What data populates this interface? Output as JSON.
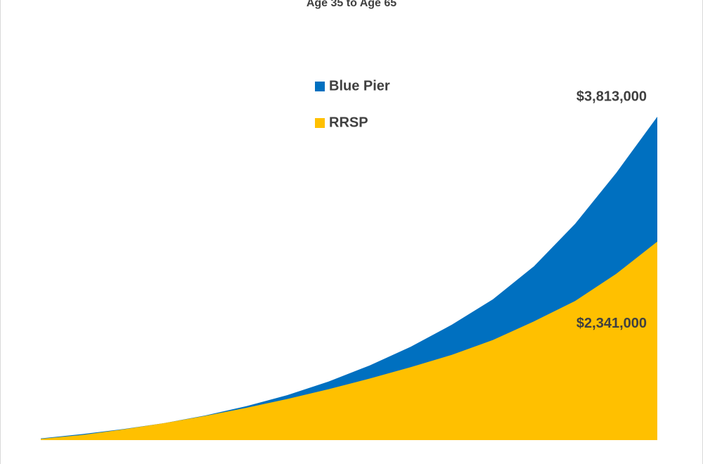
{
  "chart_data": {
    "type": "area",
    "title": "Age 35 to Age 65",
    "categories": [
      null,
      null,
      null,
      null,
      null,
      null,
      null,
      null,
      null,
      null,
      null,
      null,
      null,
      null,
      null,
      null
    ],
    "series": [
      {
        "name": "Blue Pier",
        "color": "#0070c0",
        "values": [
          20000,
          70000,
          130000,
          200000,
          290000,
          400000,
          530000,
          690000,
          880000,
          1100000,
          1360000,
          1660000,
          2050000,
          2550000,
          3150000,
          3813000
        ],
        "value_labels": [
          null,
          null,
          null,
          null,
          null,
          null,
          null,
          null,
          null,
          null,
          null,
          null,
          null,
          null,
          null,
          "$3,813,000"
        ]
      },
      {
        "name": "RRSP",
        "color": "#ffc000",
        "values": [
          15000,
          60000,
          125000,
          200000,
          285000,
          380000,
          485000,
          600000,
          725000,
          860000,
          1005000,
          1180000,
          1400000,
          1640000,
          1960000,
          2341000
        ],
        "value_labels": [
          null,
          null,
          null,
          null,
          null,
          null,
          null,
          null,
          null,
          null,
          null,
          null,
          null,
          null,
          null,
          "$2,341,000"
        ]
      }
    ]
  }
}
